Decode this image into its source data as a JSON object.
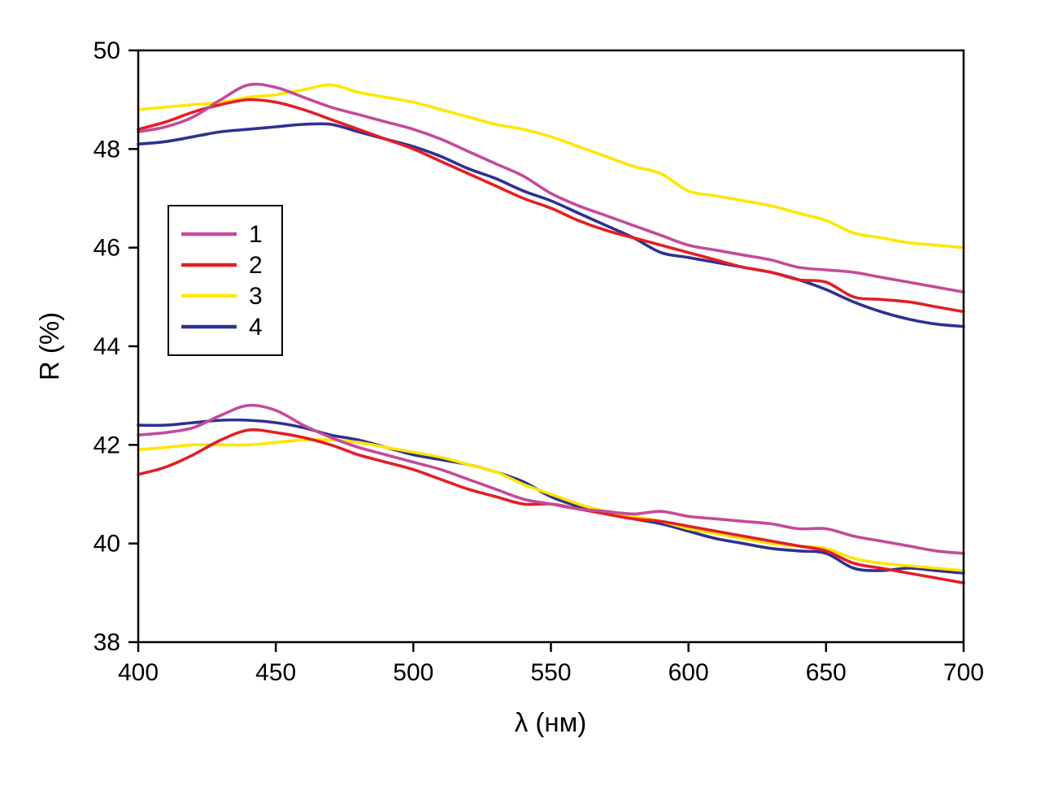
{
  "chart_data": {
    "type": "line",
    "title": "",
    "xlabel": "λ (нм)",
    "ylabel": "R (%)",
    "xlim": [
      400,
      700
    ],
    "ylim": [
      38,
      50
    ],
    "xticks": [
      400,
      450,
      500,
      550,
      600,
      650,
      700
    ],
    "yticks": [
      38,
      40,
      42,
      44,
      46,
      48,
      50
    ],
    "grid": false,
    "legend_position": "upper left inside",
    "draw_order": [
      3,
      2,
      1,
      0
    ],
    "x": [
      400,
      410,
      420,
      430,
      440,
      450,
      460,
      470,
      480,
      490,
      500,
      510,
      520,
      530,
      540,
      550,
      560,
      570,
      580,
      590,
      600,
      610,
      620,
      630,
      640,
      650,
      660,
      670,
      680,
      690,
      700
    ],
    "series": [
      {
        "name": "1",
        "color": "#C44B9B",
        "upper": [
          48.35,
          48.45,
          48.65,
          49.0,
          49.3,
          49.25,
          49.05,
          48.85,
          48.7,
          48.55,
          48.4,
          48.2,
          47.95,
          47.7,
          47.45,
          47.1,
          46.85,
          46.65,
          46.45,
          46.25,
          46.05,
          45.95,
          45.85,
          45.75,
          45.6,
          45.55,
          45.5,
          45.4,
          45.3,
          45.2,
          45.1
        ],
        "lower": [
          42.2,
          42.25,
          42.35,
          42.6,
          42.8,
          42.7,
          42.4,
          42.15,
          41.95,
          41.8,
          41.65,
          41.5,
          41.3,
          41.1,
          40.9,
          40.8,
          40.7,
          40.65,
          40.6,
          40.65,
          40.55,
          40.5,
          40.45,
          40.4,
          40.3,
          40.3,
          40.15,
          40.05,
          39.95,
          39.85,
          39.8
        ]
      },
      {
        "name": "2",
        "color": "#E41E25",
        "upper": [
          48.4,
          48.55,
          48.75,
          48.9,
          49.0,
          48.95,
          48.8,
          48.6,
          48.4,
          48.2,
          48.0,
          47.75,
          47.5,
          47.25,
          47.0,
          46.8,
          46.55,
          46.35,
          46.2,
          46.05,
          45.9,
          45.75,
          45.6,
          45.5,
          45.35,
          45.3,
          45.0,
          44.95,
          44.9,
          44.8,
          44.7
        ],
        "lower": [
          41.4,
          41.55,
          41.8,
          42.1,
          42.3,
          42.25,
          42.15,
          42.0,
          41.8,
          41.65,
          41.5,
          41.3,
          41.1,
          40.95,
          40.8,
          40.8,
          40.7,
          40.6,
          40.5,
          40.45,
          40.35,
          40.25,
          40.15,
          40.05,
          39.95,
          39.85,
          39.6,
          39.5,
          39.4,
          39.3,
          39.2
        ]
      },
      {
        "name": "3",
        "color": "#FFE600",
        "upper": [
          48.8,
          48.85,
          48.9,
          48.95,
          49.05,
          49.1,
          49.2,
          49.3,
          49.15,
          49.05,
          48.95,
          48.8,
          48.65,
          48.5,
          48.4,
          48.25,
          48.05,
          47.85,
          47.65,
          47.5,
          47.15,
          47.05,
          46.95,
          46.85,
          46.7,
          46.55,
          46.3,
          46.2,
          46.1,
          46.05,
          46.0
        ],
        "lower": [
          41.9,
          41.95,
          42.0,
          42.0,
          42.0,
          42.05,
          42.1,
          42.1,
          42.05,
          41.95,
          41.85,
          41.75,
          41.6,
          41.45,
          41.2,
          41.0,
          40.8,
          40.65,
          40.55,
          40.45,
          40.3,
          40.2,
          40.1,
          40.0,
          39.95,
          39.9,
          39.7,
          39.6,
          39.55,
          39.5,
          39.45
        ]
      },
      {
        "name": "4",
        "color": "#2E3192",
        "upper": [
          48.1,
          48.15,
          48.25,
          48.35,
          48.4,
          48.45,
          48.5,
          48.5,
          48.35,
          48.2,
          48.05,
          47.85,
          47.6,
          47.4,
          47.15,
          46.95,
          46.7,
          46.45,
          46.2,
          45.9,
          45.8,
          45.7,
          45.6,
          45.5,
          45.35,
          45.15,
          44.9,
          44.7,
          44.55,
          44.45,
          44.4
        ],
        "lower": [
          42.4,
          42.4,
          42.45,
          42.5,
          42.5,
          42.45,
          42.35,
          42.2,
          42.1,
          41.95,
          41.8,
          41.7,
          41.6,
          41.45,
          41.25,
          40.95,
          40.75,
          40.6,
          40.5,
          40.4,
          40.25,
          40.1,
          40.0,
          39.9,
          39.85,
          39.8,
          39.5,
          39.45,
          39.5,
          39.45,
          39.4
        ]
      }
    ]
  }
}
